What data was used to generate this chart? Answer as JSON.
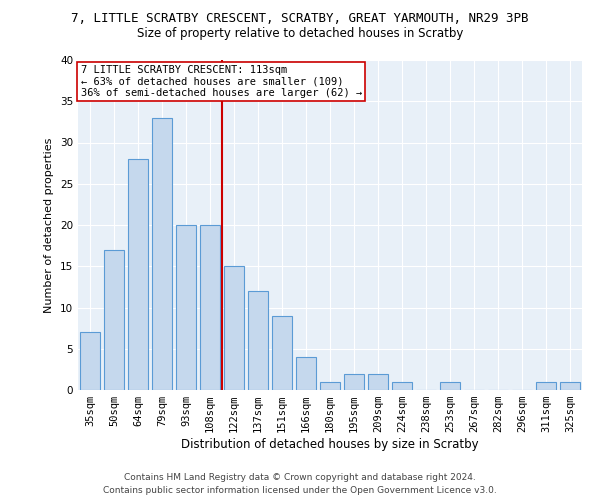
{
  "title1": "7, LITTLE SCRATBY CRESCENT, SCRATBY, GREAT YARMOUTH, NR29 3PB",
  "title2": "Size of property relative to detached houses in Scratby",
  "xlabel": "Distribution of detached houses by size in Scratby",
  "ylabel": "Number of detached properties",
  "categories": [
    "35sqm",
    "50sqm",
    "64sqm",
    "79sqm",
    "93sqm",
    "108sqm",
    "122sqm",
    "137sqm",
    "151sqm",
    "166sqm",
    "180sqm",
    "195sqm",
    "209sqm",
    "224sqm",
    "238sqm",
    "253sqm",
    "267sqm",
    "282sqm",
    "296sqm",
    "311sqm",
    "325sqm"
  ],
  "values": [
    7,
    17,
    28,
    33,
    20,
    20,
    15,
    12,
    9,
    4,
    1,
    2,
    2,
    1,
    0,
    1,
    0,
    0,
    0,
    1,
    1
  ],
  "bar_color": "#c5d8ed",
  "bar_edge_color": "#5b9bd5",
  "vline_x": 5.5,
  "vline_color": "#cc0000",
  "annotation_text": "7 LITTLE SCRATBY CRESCENT: 113sqm\n← 63% of detached houses are smaller (109)\n36% of semi-detached houses are larger (62) →",
  "annotation_box_color": "#ffffff",
  "annotation_box_edge_color": "#cc0000",
  "ylim": [
    0,
    40
  ],
  "yticks": [
    0,
    5,
    10,
    15,
    20,
    25,
    30,
    35,
    40
  ],
  "footer1": "Contains HM Land Registry data © Crown copyright and database right 2024.",
  "footer2": "Contains public sector information licensed under the Open Government Licence v3.0.",
  "bg_color": "#e8f0f8",
  "fig_bg_color": "#ffffff",
  "title1_fontsize": 9,
  "title2_fontsize": 8.5,
  "xlabel_fontsize": 8.5,
  "ylabel_fontsize": 8,
  "tick_fontsize": 7.5,
  "annotation_fontsize": 7.5,
  "footer_fontsize": 6.5
}
